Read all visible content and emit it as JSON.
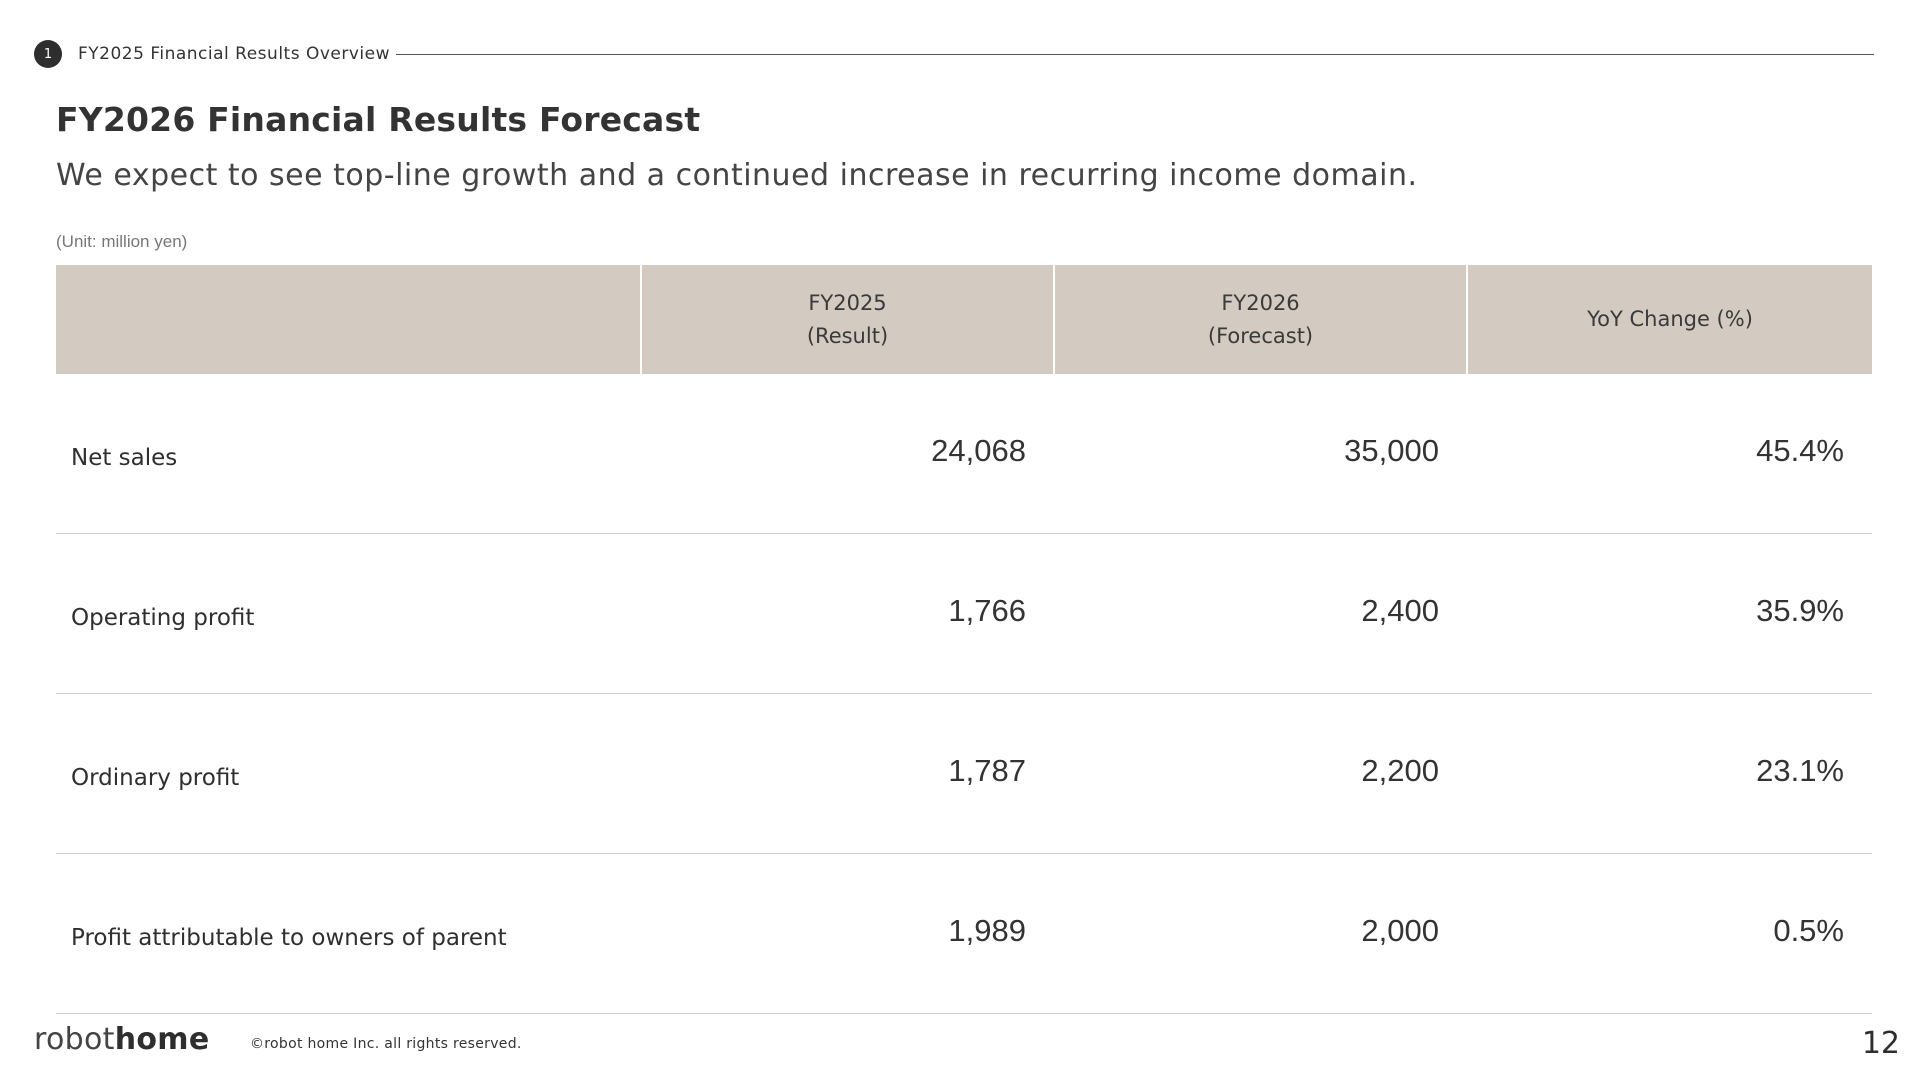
{
  "section": {
    "number": "1",
    "title": "FY2025 Financial Results Overview"
  },
  "title": "FY2026 Financial Results Forecast",
  "subtitle": "We expect to see top-line growth and a continued increase in recurring income domain.",
  "unit_note": "(Unit: million yen)",
  "table": {
    "headers": [
      {
        "line1": "",
        "line2": ""
      },
      {
        "line1": "FY2025",
        "line2": "(Result)"
      },
      {
        "line1": "FY2026",
        "line2": "(Forecast)"
      },
      {
        "line1": "YoY Change (%)",
        "line2": ""
      }
    ],
    "rows": [
      {
        "label": "Net sales",
        "fy2025": "24,068",
        "fy2026": "35,000",
        "yoy": "45.4%"
      },
      {
        "label": "Operating profit",
        "fy2025": "1,766",
        "fy2026": "2,400",
        "yoy": "35.9%"
      },
      {
        "label": "Ordinary profit",
        "fy2025": "1,787",
        "fy2026": "2,200",
        "yoy": "23.1%"
      },
      {
        "label": "Profit attributable to owners of parent",
        "fy2025": "1,989",
        "fy2026": "2,000",
        "yoy": "0.5%"
      }
    ]
  },
  "footer": {
    "logo_light": "robot",
    "logo_bold": "home",
    "copyright": "©robot home Inc. all rights reserved.",
    "page_number": "12"
  },
  "colors": {
    "header_bg": "#d3cac1",
    "text": "#333333",
    "rule": "#cfcfcf"
  }
}
